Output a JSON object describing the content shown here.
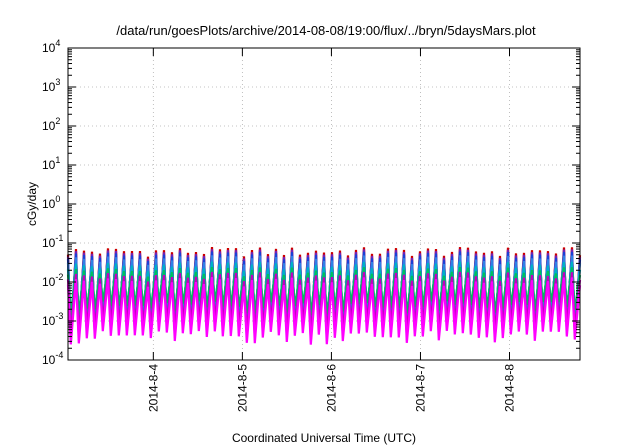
{
  "chart_data": {
    "type": "line",
    "title": "/data/run/goesPlots/archive/2014-08-08/19:00/flux/../bryn/5daysMars.plot",
    "xlabel": "Coordinated Universal Time (UTC)",
    "ylabel": "cGy/day",
    "yscale": "log",
    "ylim": [
      0.0001,
      10000
    ],
    "yticks": [
      {
        "base": "10",
        "exp": "-4",
        "value": 0.0001
      },
      {
        "base": "10",
        "exp": "-3",
        "value": 0.001
      },
      {
        "base": "10",
        "exp": "-2",
        "value": 0.01
      },
      {
        "base": "10",
        "exp": "-1",
        "value": 0.1
      },
      {
        "base": "10",
        "exp": "0",
        "value": 1
      },
      {
        "base": "10",
        "exp": "1",
        "value": 10
      },
      {
        "base": "10",
        "exp": "2",
        "value": 100
      },
      {
        "base": "10",
        "exp": "3",
        "value": 1000
      },
      {
        "base": "10",
        "exp": "4",
        "value": 10000
      }
    ],
    "xlim": [
      "2014-08-03 01:00",
      "2014-08-08 19:00"
    ],
    "xticks": [
      "2014-8-4",
      "2014-8-5",
      "2014-8-6",
      "2014-8-7",
      "2014-8-8"
    ],
    "grid": true,
    "legend": "none",
    "oscillation": {
      "cycles": 64,
      "base_peak": 0.045,
      "base_min": 0.0009
    },
    "series": [
      {
        "color": "#cc0000",
        "peak_scale": 1.3,
        "min_scale": 0.65
      },
      {
        "color": "#7a1fb0",
        "peak_scale": 1.15,
        "min_scale": 0.55
      },
      {
        "color": "#1a3fd6",
        "peak_scale": 1.0,
        "min_scale": 0.9
      },
      {
        "color": "#2f7fe6",
        "peak_scale": 0.8,
        "min_scale": 1.4
      },
      {
        "color": "#00b0c8",
        "peak_scale": 0.55,
        "min_scale": 1.9
      },
      {
        "color": "#00c060",
        "peak_scale": 0.4,
        "min_scale": 2.6
      },
      {
        "color": "#c000c0",
        "peak_scale": 0.3,
        "min_scale": 0.85
      },
      {
        "color": "#ff00ff",
        "peak_scale": 0.22,
        "min_scale": 0.45
      }
    ]
  }
}
